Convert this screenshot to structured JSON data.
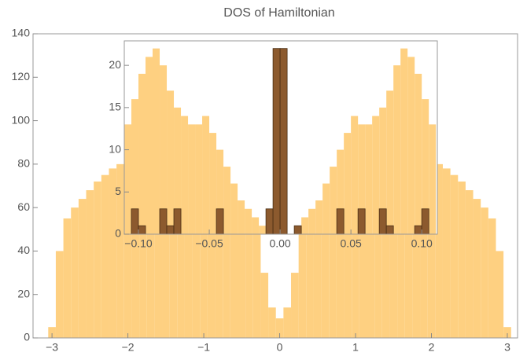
{
  "chart_data": [
    {
      "type": "histogram",
      "title": "DOS of Hamiltonian",
      "bins": [
        -3.05,
        -2.95,
        -2.85,
        -2.75,
        -2.65,
        -2.55,
        -2.45,
        -2.35,
        -2.25,
        -2.15,
        -2.05,
        -1.95,
        -1.85,
        -1.75,
        -1.65,
        -1.55,
        -1.45,
        -1.35,
        -1.25,
        -1.15,
        -1.05,
        -0.95,
        -0.85,
        -0.75,
        -0.65,
        -0.55,
        -0.45,
        -0.35,
        -0.25,
        -0.15,
        -0.05,
        0.05,
        0.15,
        0.25,
        0.35,
        0.45,
        0.55,
        0.65,
        0.75,
        0.85,
        0.95,
        1.05,
        1.15,
        1.25,
        1.35,
        1.45,
        1.55,
        1.65,
        1.75,
        1.85,
        1.95,
        2.05,
        2.15,
        2.25,
        2.35,
        2.45,
        2.55,
        2.65,
        2.75,
        2.85,
        2.95,
        3.05
      ],
      "series": [
        {
          "color": "#fed081",
          "values": [
            5,
            40,
            55,
            60,
            64,
            68,
            72,
            75,
            78,
            80,
            88,
            100,
            120,
            130,
            125,
            110,
            105,
            100,
            95,
            92,
            95,
            100,
            90,
            80,
            72,
            65,
            58,
            48,
            30,
            14,
            9,
            14,
            30,
            48,
            58,
            65,
            72,
            80,
            90,
            100,
            95,
            92,
            95,
            100,
            105,
            110,
            125,
            130,
            120,
            100,
            88,
            80,
            78,
            75,
            72,
            68,
            64,
            60,
            55,
            40,
            5
          ]
        }
      ],
      "xlim": [
        -3.25,
        3.135
      ],
      "ylim": [
        0,
        140
      ],
      "xticks": [
        {
          "value": -3,
          "label": "−3"
        },
        {
          "value": -2,
          "label": "−2"
        },
        {
          "value": -1,
          "label": "−1"
        },
        0,
        1,
        2,
        3
      ],
      "yticks": [
        0,
        20,
        40,
        60,
        80,
        100,
        120,
        140
      ]
    },
    {
      "type": "histogram",
      "bins": [
        -0.11,
        -0.105,
        -0.1,
        -0.095,
        -0.09,
        -0.085,
        -0.08,
        -0.075,
        -0.07,
        -0.065,
        -0.06,
        -0.055,
        -0.05,
        -0.045,
        -0.04,
        -0.035,
        -0.03,
        -0.025,
        -0.02,
        -0.015,
        -0.01,
        -0.005,
        0,
        0.005,
        0.01,
        0.015,
        0.02,
        0.025,
        0.03,
        0.035,
        0.04,
        0.045,
        0.05,
        0.055,
        0.06,
        0.065,
        0.07,
        0.075,
        0.08,
        0.085,
        0.09,
        0.095,
        0.1,
        0.105,
        0.11
      ],
      "series": [
        {
          "color": "#fed081",
          "values": [
            13,
            16,
            19,
            21,
            22,
            20,
            17,
            15,
            14,
            13,
            13,
            14,
            12,
            10,
            8,
            6,
            4,
            3,
            2,
            1,
            0,
            0,
            0,
            0,
            1,
            2,
            3,
            4,
            6,
            8,
            10,
            12,
            14,
            13,
            13,
            14,
            15,
            17,
            20,
            22,
            21,
            19,
            16,
            13
          ]
        },
        {
          "color": "#8c5a2e",
          "values": [
            0,
            3,
            1,
            0,
            0,
            3,
            1,
            3,
            0,
            0,
            0,
            0,
            0,
            3,
            0,
            0,
            0,
            0,
            0,
            0,
            3,
            22,
            22,
            0,
            1,
            0,
            0,
            0,
            0,
            0,
            3,
            0,
            0,
            3,
            0,
            0,
            3,
            1,
            0,
            0,
            0,
            1,
            3,
            0
          ]
        }
      ],
      "xlim": [
        -0.11,
        0.111
      ],
      "ylim": [
        0,
        22.9
      ],
      "xticks": [
        {
          "value": -0.1,
          "label": "−0.10"
        },
        {
          "value": -0.05,
          "label": "−0.05"
        },
        {
          "value": 0,
          "label": "0.00"
        },
        {
          "value": 0.05,
          "label": "0.05"
        },
        {
          "value": 0.1,
          "label": "0.10"
        }
      ],
      "yticks": [
        0,
        5,
        10,
        15,
        20
      ]
    }
  ]
}
